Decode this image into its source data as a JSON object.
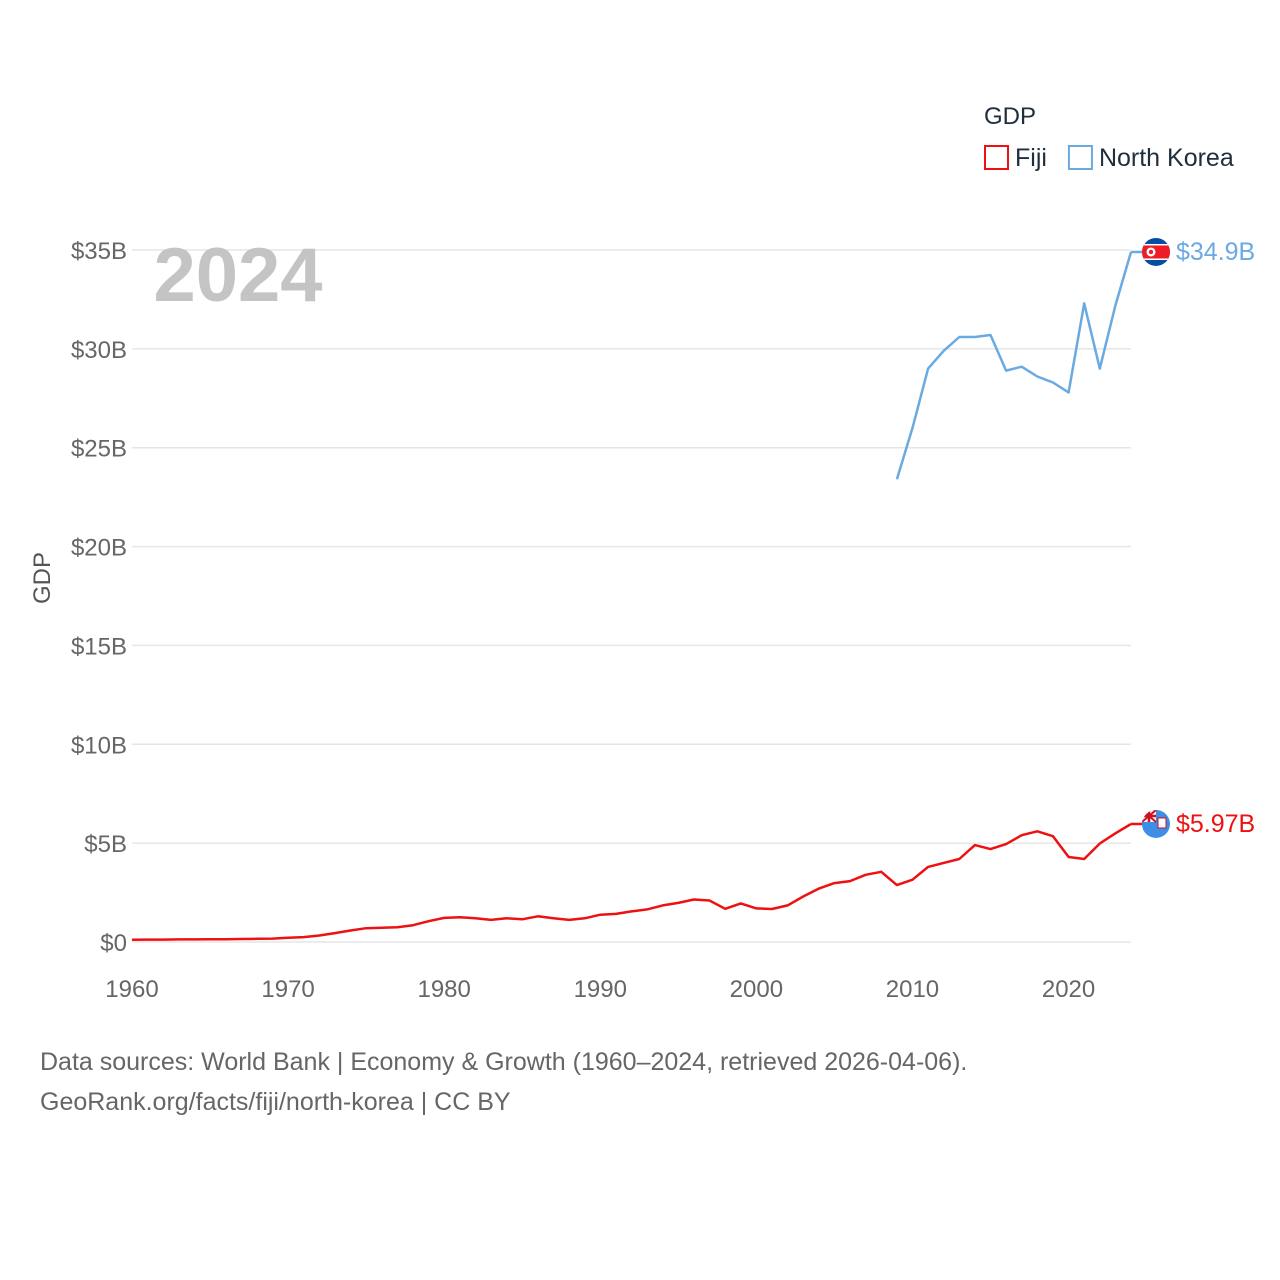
{
  "chart_data": {
    "type": "line",
    "year_label": "2024",
    "ylabel": "GDP",
    "legend_title": "GDP",
    "legend": "top-right",
    "grid": true,
    "x_ticks": [
      "1960",
      "1970",
      "1980",
      "1990",
      "2000",
      "2010",
      "2020"
    ],
    "y_ticks": [
      "$0",
      "$5B",
      "$10B",
      "$15B",
      "$20B",
      "$25B",
      "$30B",
      "$35B"
    ],
    "xlim": [
      1960,
      2024
    ],
    "ylim": [
      0,
      35
    ],
    "y_unit": "billions USD",
    "series": [
      {
        "name": "Fiji",
        "color": "#ee1111",
        "end_label": "$5.97B",
        "flag_icon": "fiji-flag-icon",
        "points": [
          [
            1960,
            0.11
          ],
          [
            1961,
            0.12
          ],
          [
            1962,
            0.12
          ],
          [
            1963,
            0.13
          ],
          [
            1964,
            0.13
          ],
          [
            1965,
            0.14
          ],
          [
            1966,
            0.14
          ],
          [
            1967,
            0.15
          ],
          [
            1968,
            0.16
          ],
          [
            1969,
            0.17
          ],
          [
            1970,
            0.22
          ],
          [
            1971,
            0.25
          ],
          [
            1972,
            0.33
          ],
          [
            1973,
            0.45
          ],
          [
            1974,
            0.58
          ],
          [
            1975,
            0.7
          ],
          [
            1976,
            0.72
          ],
          [
            1977,
            0.75
          ],
          [
            1978,
            0.85
          ],
          [
            1979,
            1.05
          ],
          [
            1980,
            1.22
          ],
          [
            1981,
            1.25
          ],
          [
            1982,
            1.2
          ],
          [
            1983,
            1.12
          ],
          [
            1984,
            1.2
          ],
          [
            1985,
            1.15
          ],
          [
            1986,
            1.3
          ],
          [
            1987,
            1.2
          ],
          [
            1988,
            1.12
          ],
          [
            1989,
            1.2
          ],
          [
            1990,
            1.38
          ],
          [
            1991,
            1.42
          ],
          [
            1992,
            1.55
          ],
          [
            1993,
            1.65
          ],
          [
            1994,
            1.85
          ],
          [
            1995,
            1.98
          ],
          [
            1996,
            2.15
          ],
          [
            1997,
            2.1
          ],
          [
            1998,
            1.68
          ],
          [
            1999,
            1.95
          ],
          [
            2000,
            1.7
          ],
          [
            2001,
            1.67
          ],
          [
            2002,
            1.85
          ],
          [
            2003,
            2.3
          ],
          [
            2004,
            2.7
          ],
          [
            2005,
            2.98
          ],
          [
            2006,
            3.08
          ],
          [
            2007,
            3.4
          ],
          [
            2008,
            3.55
          ],
          [
            2009,
            2.88
          ],
          [
            2010,
            3.15
          ],
          [
            2011,
            3.8
          ],
          [
            2012,
            4.0
          ],
          [
            2013,
            4.2
          ],
          [
            2014,
            4.9
          ],
          [
            2015,
            4.7
          ],
          [
            2016,
            4.95
          ],
          [
            2017,
            5.4
          ],
          [
            2018,
            5.6
          ],
          [
            2019,
            5.35
          ],
          [
            2020,
            4.3
          ],
          [
            2021,
            4.2
          ],
          [
            2022,
            4.98
          ],
          [
            2023,
            5.5
          ],
          [
            2024,
            5.97
          ]
        ]
      },
      {
        "name": "North Korea",
        "color": "#6aaae0",
        "end_label": "$34.9B",
        "flag_icon": "north-korea-flag-icon",
        "points": [
          [
            2009,
            23.4
          ],
          [
            2010,
            26.0
          ],
          [
            2011,
            29.0
          ],
          [
            2012,
            29.9
          ],
          [
            2013,
            30.6
          ],
          [
            2014,
            30.6
          ],
          [
            2015,
            30.7
          ],
          [
            2016,
            28.9
          ],
          [
            2017,
            29.1
          ],
          [
            2018,
            28.6
          ],
          [
            2019,
            28.3
          ],
          [
            2020,
            27.8
          ],
          [
            2021,
            32.3
          ],
          [
            2022,
            29.0
          ],
          [
            2023,
            32.2
          ],
          [
            2024,
            34.9
          ]
        ]
      }
    ]
  },
  "source": {
    "line1": "Data sources: World Bank | Economy & Growth (1960–2024, retrieved 2026-04-06).",
    "line2": "GeoRank.org/facts/fiji/north-korea | CC BY"
  }
}
